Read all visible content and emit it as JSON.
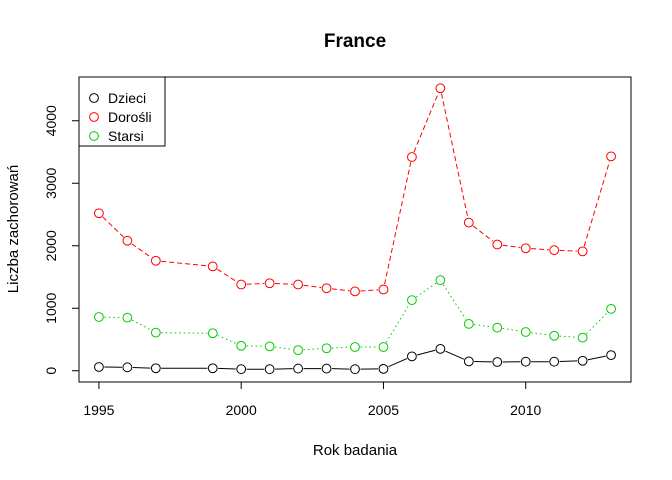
{
  "chart_data": {
    "type": "line",
    "title": "France",
    "xlabel": "Rok badania",
    "ylabel": "Liczba zachorowań",
    "xlim": [
      1994.3,
      2013.7
    ],
    "ylim": [
      -180,
      4700
    ],
    "x_ticks": [
      1995,
      2000,
      2005,
      2010
    ],
    "y_ticks": [
      0,
      1000,
      2000,
      3000,
      4000
    ],
    "grid": false,
    "legend_position": "top-left",
    "x": [
      1995,
      1996,
      1997,
      1999,
      2000,
      2001,
      2002,
      2003,
      2004,
      2005,
      2006,
      2007,
      2008,
      2009,
      2010,
      2011,
      2012,
      2013
    ],
    "series": [
      {
        "name": "Dzieci",
        "color": "#000000",
        "line_style": "solid",
        "values": [
          60,
          55,
          40,
          40,
          25,
          25,
          35,
          35,
          25,
          30,
          230,
          350,
          150,
          140,
          145,
          145,
          160,
          250
        ]
      },
      {
        "name": "Dorośli",
        "color": "#ff0000",
        "line_style": "dashed",
        "values": [
          2520,
          2080,
          1760,
          1670,
          1380,
          1400,
          1380,
          1320,
          1270,
          1300,
          3420,
          4520,
          2370,
          2020,
          1960,
          1930,
          1910,
          3430
        ]
      },
      {
        "name": "Starsi",
        "color": "#00cd00",
        "line_style": "dotted",
        "values": [
          860,
          850,
          610,
          600,
          400,
          390,
          330,
          360,
          380,
          380,
          1130,
          1450,
          750,
          690,
          620,
          560,
          530,
          990
        ]
      }
    ]
  }
}
